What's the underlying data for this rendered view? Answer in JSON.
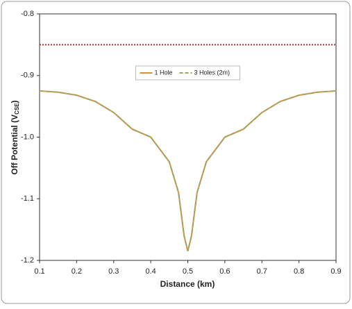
{
  "chart_data": {
    "type": "line",
    "x_label": "Distance (km)",
    "y_label": "Off Potential (V",
    "y_label_sub": "CSE",
    "y_label_end": ")",
    "x": [
      0.1,
      0.15,
      0.2,
      0.25,
      0.3,
      0.35,
      0.4,
      0.45,
      0.475,
      0.49,
      0.5,
      0.51,
      0.525,
      0.55,
      0.6,
      0.65,
      0.7,
      0.75,
      0.8,
      0.85,
      0.9
    ],
    "series": [
      {
        "name": "1 Hole",
        "color": "#d8913f",
        "dash": false,
        "values": [
          -0.925,
          -0.927,
          -0.932,
          -0.942,
          -0.96,
          -0.987,
          -1.0,
          -1.04,
          -1.09,
          -1.16,
          -1.185,
          -1.16,
          -1.09,
          -1.04,
          -1.0,
          -0.987,
          -0.96,
          -0.942,
          -0.932,
          -0.927,
          -0.925
        ]
      },
      {
        "name": "3 Holes (2m)",
        "color": "#9aa56a",
        "dash": true,
        "values": [
          -0.925,
          -0.927,
          -0.932,
          -0.942,
          -0.96,
          -0.987,
          -1.0,
          -1.04,
          -1.09,
          -1.16,
          -1.185,
          -1.16,
          -1.09,
          -1.04,
          -1.0,
          -0.987,
          -0.96,
          -0.942,
          -0.932,
          -0.927,
          -0.925
        ]
      }
    ],
    "reference_lines": [
      {
        "value": -0.85,
        "color": "#d22a2a"
      }
    ],
    "xlim": [
      0.1,
      0.9
    ],
    "xticks": [
      0.1,
      0.2,
      0.3,
      0.4,
      0.5,
      0.6,
      0.7,
      0.8,
      0.9
    ],
    "ylim": [
      -1.2,
      -0.8
    ],
    "yticks": [
      -1.2,
      -1.1,
      {
        "value": -1.0,
        "label": "-1.0"
      },
      -0.9,
      -0.8
    ],
    "legend": "upper center"
  }
}
